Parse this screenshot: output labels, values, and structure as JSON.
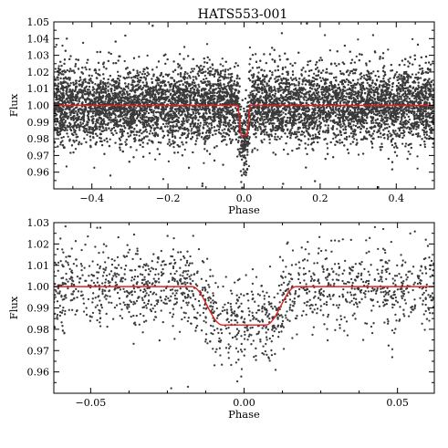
{
  "chart_data": [
    {
      "type": "scatter",
      "title": "HATS553-001",
      "xlabel": "Phase",
      "ylabel": "Flux",
      "xlim": [
        -0.5,
        0.5
      ],
      "ylim": [
        0.95,
        1.05
      ],
      "xticks": [
        -0.4,
        -0.2,
        0.0,
        0.2,
        0.4
      ],
      "xtick_labels": [
        "−0.4",
        "−0.2",
        "0.0",
        "0.2",
        "0.4"
      ],
      "yticks": [
        0.96,
        0.97,
        0.98,
        0.99,
        1.0,
        1.01,
        1.02,
        1.03,
        1.04,
        1.05
      ],
      "ytick_labels": [
        "0.96",
        "0.97",
        "0.98",
        "0.99",
        "1.00",
        "1.01",
        "1.02",
        "1.03",
        "1.04",
        "1.05"
      ],
      "series": [
        {
          "kind": "points",
          "color": "#3a3a3a",
          "n_points": 12000,
          "baseline_flux": 1.0,
          "scatter_sd": 0.011
        },
        {
          "kind": "model",
          "color": "#e02020",
          "transit_center": 0.0,
          "transit_depth": 0.018,
          "total_duration": 0.034,
          "flat_bottom_duration": 0.014
        }
      ]
    },
    {
      "type": "scatter",
      "title": "",
      "xlabel": "Phase",
      "ylabel": "Flux",
      "xlim": [
        -0.062,
        0.062
      ],
      "ylim": [
        0.95,
        1.03
      ],
      "xticks": [
        -0.05,
        0.0,
        0.05
      ],
      "xtick_labels": [
        "−0.05",
        "0.00",
        "0.05"
      ],
      "yticks": [
        0.96,
        0.97,
        0.98,
        0.99,
        1.0,
        1.01,
        1.02,
        1.03
      ],
      "ytick_labels": [
        "0.96",
        "0.97",
        "0.98",
        "0.99",
        "1.00",
        "1.01",
        "1.02",
        "1.03"
      ],
      "series": [
        {
          "kind": "points",
          "color": "#3a3a3a",
          "n_points": 1500,
          "baseline_flux": 1.0,
          "scatter_sd": 0.0095
        },
        {
          "kind": "model",
          "color": "#e02020",
          "transit_center": 0.0,
          "transit_depth": 0.018,
          "total_duration": 0.034,
          "flat_bottom_duration": 0.014
        }
      ]
    }
  ]
}
